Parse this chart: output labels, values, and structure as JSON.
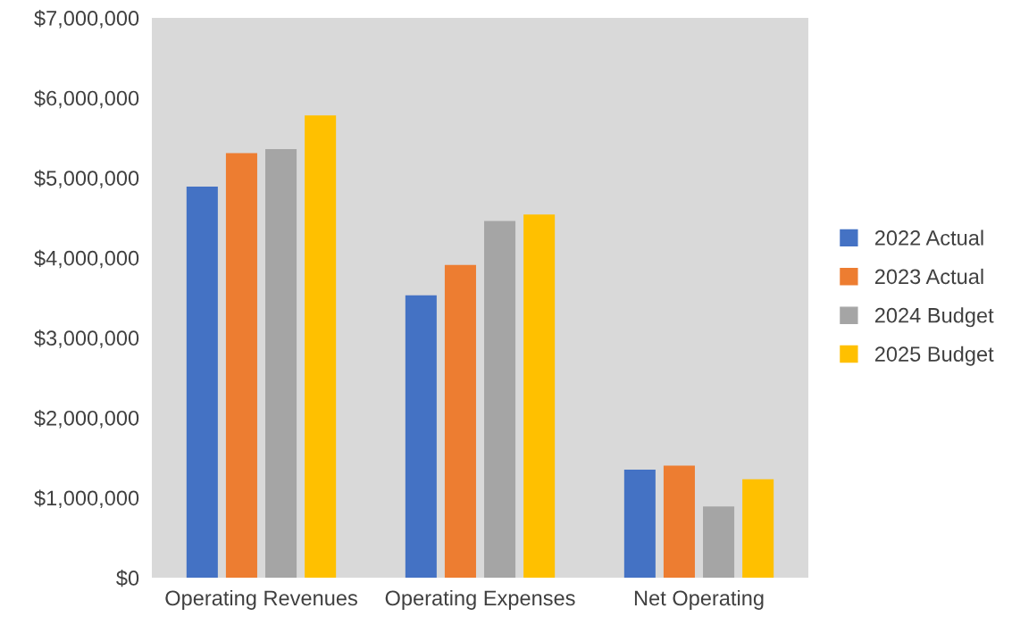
{
  "chart_data": {
    "type": "bar",
    "categories": [
      "Operating Revenues",
      "Operating Expenses",
      "Net Operating"
    ],
    "series": [
      {
        "name": "2022 Actual",
        "color": "#4472c4",
        "values": [
          4890000,
          3530000,
          1350000
        ]
      },
      {
        "name": "2023 Actual",
        "color": "#ed7d31",
        "values": [
          5310000,
          3910000,
          1400000
        ]
      },
      {
        "name": "2024 Budget",
        "color": "#a5a5a5",
        "values": [
          5360000,
          4460000,
          890000
        ]
      },
      {
        "name": "2025 Budget",
        "color": "#ffc000",
        "values": [
          5780000,
          4540000,
          1230000
        ]
      }
    ],
    "ylim": [
      0,
      7000000
    ],
    "yticks": [
      {
        "value": 0,
        "label": "$0"
      },
      {
        "value": 1000000,
        "label": "$1,000,000"
      },
      {
        "value": 2000000,
        "label": "$2,000,000"
      },
      {
        "value": 3000000,
        "label": "$3,000,000"
      },
      {
        "value": 4000000,
        "label": "$4,000,000"
      },
      {
        "value": 5000000,
        "label": "$5,000,000"
      },
      {
        "value": 6000000,
        "label": "$6,000,000"
      },
      {
        "value": 7000000,
        "label": "$7,000,000"
      }
    ],
    "grid": false,
    "legend": "right"
  }
}
